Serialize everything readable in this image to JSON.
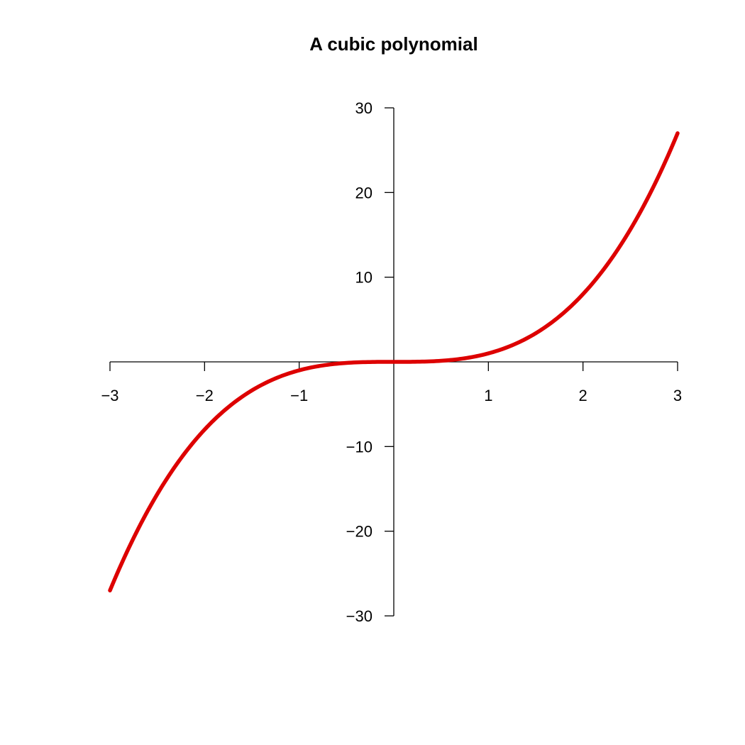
{
  "chart_data": {
    "type": "line",
    "title": "A cubic polynomial",
    "xlabel": "",
    "ylabel": "",
    "function": "y = x^3",
    "xlim": [
      -3,
      3
    ],
    "ylim": [
      -30,
      30
    ],
    "x_ticks": [
      -3,
      -2,
      -1,
      1,
      2,
      3
    ],
    "x_tick_labels": [
      "−3",
      "−2",
      "−1",
      "1",
      "2",
      "3"
    ],
    "y_ticks": [
      30,
      20,
      10,
      -10,
      -20,
      -30
    ],
    "y_tick_labels": [
      "30",
      "20",
      "10",
      "−10",
      "−20",
      "−30"
    ],
    "axes_through_origin": true,
    "grid": false,
    "series": [
      {
        "color": "#dd0000",
        "x": [
          -3,
          -2.5,
          -2,
          -1.5,
          -1,
          -0.5,
          0,
          0.5,
          1,
          1.5,
          2,
          2.5,
          3
        ],
        "y": [
          -27,
          -15.625,
          -8,
          -3.375,
          -1,
          -0.125,
          0,
          0.125,
          1,
          3.375,
          8,
          15.625,
          27
        ]
      }
    ]
  }
}
